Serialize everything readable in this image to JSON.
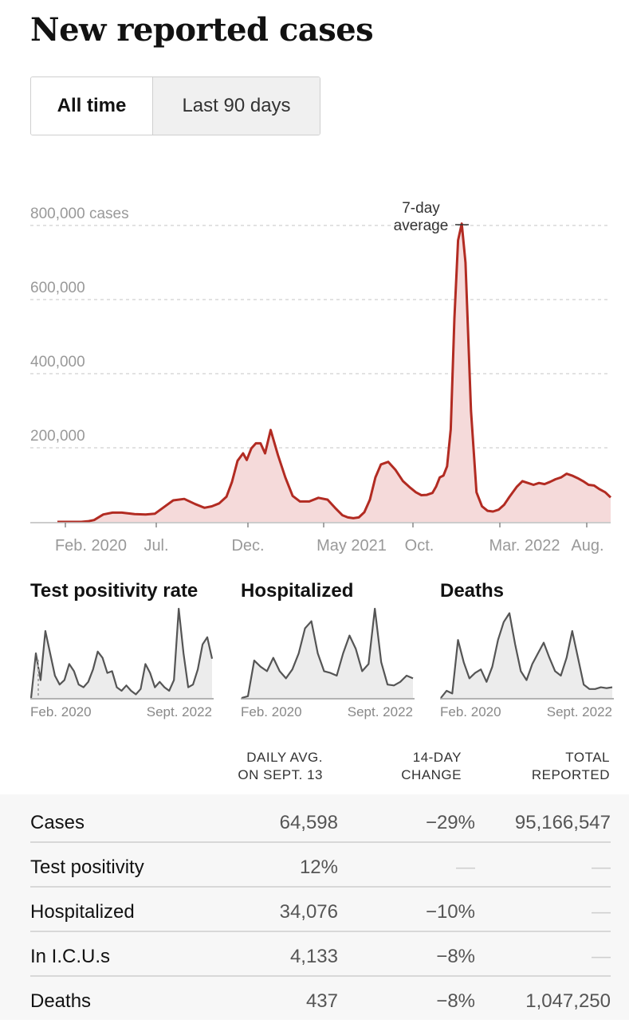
{
  "header": {
    "title": "New reported cases"
  },
  "toggle": {
    "all_time": "All time",
    "last_90": "Last 90 days"
  },
  "chart_data": [
    {
      "type": "area",
      "ylabel": "cases",
      "ylim": [
        0,
        800000
      ],
      "y_ticks": [
        "800,000 cases",
        "600,000",
        "400,000",
        "200,000"
      ],
      "x_ticks": [
        "Feb. 2020",
        "Jul.",
        "Dec.",
        "May 2021",
        "Oct.",
        "Mar. 2022",
        "Aug."
      ],
      "annotation": [
        "7-day",
        "average"
      ],
      "grid": true,
      "series": [
        {
          "values_x_months": [
            0,
            0.7,
            1.3,
            1.7,
            2.0,
            2.5,
            3.0,
            3.5,
            4.2,
            4.8,
            5.3,
            5.8,
            6.3,
            6.9,
            7.5,
            8.0,
            8.4,
            8.8,
            9.2,
            9.5,
            9.8,
            10.1,
            10.3,
            10.55,
            10.8,
            11.05,
            11.3,
            11.6,
            12.0,
            12.4,
            12.8,
            13.2,
            13.7,
            14.2,
            14.7,
            15.1,
            15.5,
            15.8,
            16.1,
            16.4,
            16.7,
            17.0,
            17.3,
            17.6,
            18.0,
            18.4,
            18.8,
            19.2,
            19.5,
            19.8,
            20.1,
            20.4,
            20.6,
            20.8,
            21.0,
            21.2,
            21.4,
            21.6,
            21.8,
            22.0,
            22.2,
            22.5,
            22.8,
            23.1,
            23.4,
            23.7,
            24.0,
            24.3,
            24.6,
            25.0,
            25.3,
            25.6,
            25.9,
            26.2,
            26.5,
            26.8,
            27.1,
            27.4,
            27.7,
            28.0,
            28.3,
            28.6,
            28.9,
            29.2,
            29.5,
            29.8,
            30.1
          ],
          "values": [
            0,
            0,
            0,
            2000,
            5000,
            20000,
            25000,
            25000,
            21000,
            20000,
            22000,
            40000,
            58000,
            62000,
            48000,
            38000,
            42000,
            50000,
            68000,
            108000,
            165000,
            185000,
            167000,
            198000,
            212000,
            212000,
            185000,
            248000,
            180000,
            120000,
            70000,
            55000,
            55000,
            65000,
            60000,
            38000,
            18000,
            12000,
            10000,
            12000,
            26000,
            60000,
            120000,
            155000,
            162000,
            140000,
            110000,
            92000,
            80000,
            72000,
            73000,
            78000,
            95000,
            120000,
            125000,
            150000,
            250000,
            550000,
            760000,
            805000,
            700000,
            300000,
            80000,
            42000,
            30000,
            28000,
            33000,
            46000,
            68000,
            95000,
            110000,
            105000,
            100000,
            105000,
            102000,
            108000,
            115000,
            120000,
            130000,
            125000,
            118000,
            110000,
            100000,
            98000,
            88000,
            80000,
            66000
          ]
        }
      ]
    },
    {
      "type": "area",
      "title": "Test positivity rate",
      "x_ticks": [
        "Feb. 2020",
        "Sept. 2022"
      ],
      "series": [
        {
          "values": [
            0,
            0.5,
            0.2,
            0.75,
            0.5,
            0.25,
            0.15,
            0.2,
            0.38,
            0.3,
            0.15,
            0.12,
            0.18,
            0.32,
            0.52,
            0.45,
            0.28,
            0.3,
            0.12,
            0.08,
            0.14,
            0.08,
            0.04,
            0.1,
            0.38,
            0.28,
            0.12,
            0.18,
            0.12,
            0.08,
            0.2,
            1.0,
            0.5,
            0.12,
            0.15,
            0.32,
            0.6,
            0.68,
            0.44
          ]
        }
      ]
    },
    {
      "type": "area",
      "title": "Hospitalized",
      "x_ticks": [
        "Feb. 2020",
        "Sept. 2022"
      ],
      "series": [
        {
          "values": [
            0,
            0.02,
            0.42,
            0.35,
            0.3,
            0.45,
            0.3,
            0.22,
            0.32,
            0.5,
            0.78,
            0.86,
            0.5,
            0.3,
            0.28,
            0.25,
            0.5,
            0.7,
            0.55,
            0.3,
            0.38,
            1.0,
            0.4,
            0.15,
            0.14,
            0.18,
            0.25,
            0.22
          ]
        }
      ]
    },
    {
      "type": "area",
      "title": "Deaths",
      "x_ticks": [
        "Feb. 2020",
        "Sept. 2022"
      ],
      "series": [
        {
          "values": [
            0,
            0.08,
            0.05,
            0.65,
            0.4,
            0.22,
            0.28,
            0.32,
            0.18,
            0.35,
            0.65,
            0.85,
            0.95,
            0.6,
            0.3,
            0.2,
            0.38,
            0.5,
            0.62,
            0.45,
            0.3,
            0.25,
            0.45,
            0.75,
            0.45,
            0.15,
            0.1,
            0.1,
            0.12,
            0.11,
            0.12
          ]
        }
      ]
    }
  ],
  "table": {
    "headers": {
      "avg": [
        "DAILY AVG.",
        "ON SEPT. 13"
      ],
      "change": [
        "14-DAY",
        "CHANGE"
      ],
      "total": [
        "TOTAL",
        "REPORTED"
      ]
    },
    "rows": [
      {
        "name": "Cases",
        "avg": "64,598",
        "change": "−29%",
        "total": "95,166,547"
      },
      {
        "name": "Test positivity",
        "avg": "12%",
        "change": "—",
        "total": "—"
      },
      {
        "name": "Hospitalized",
        "avg": "34,076",
        "change": "−10%",
        "total": "—"
      },
      {
        "name": "In I.C.U.s",
        "avg": "4,133",
        "change": "−8%",
        "total": "—"
      },
      {
        "name": "Deaths",
        "avg": "437",
        "change": "−8%",
        "total": "1,047,250"
      }
    ]
  },
  "colors": {
    "case_line": "#b22b22",
    "case_fill": "#f5dada",
    "mini_line": "#555555",
    "mini_fill": "#ececec"
  }
}
